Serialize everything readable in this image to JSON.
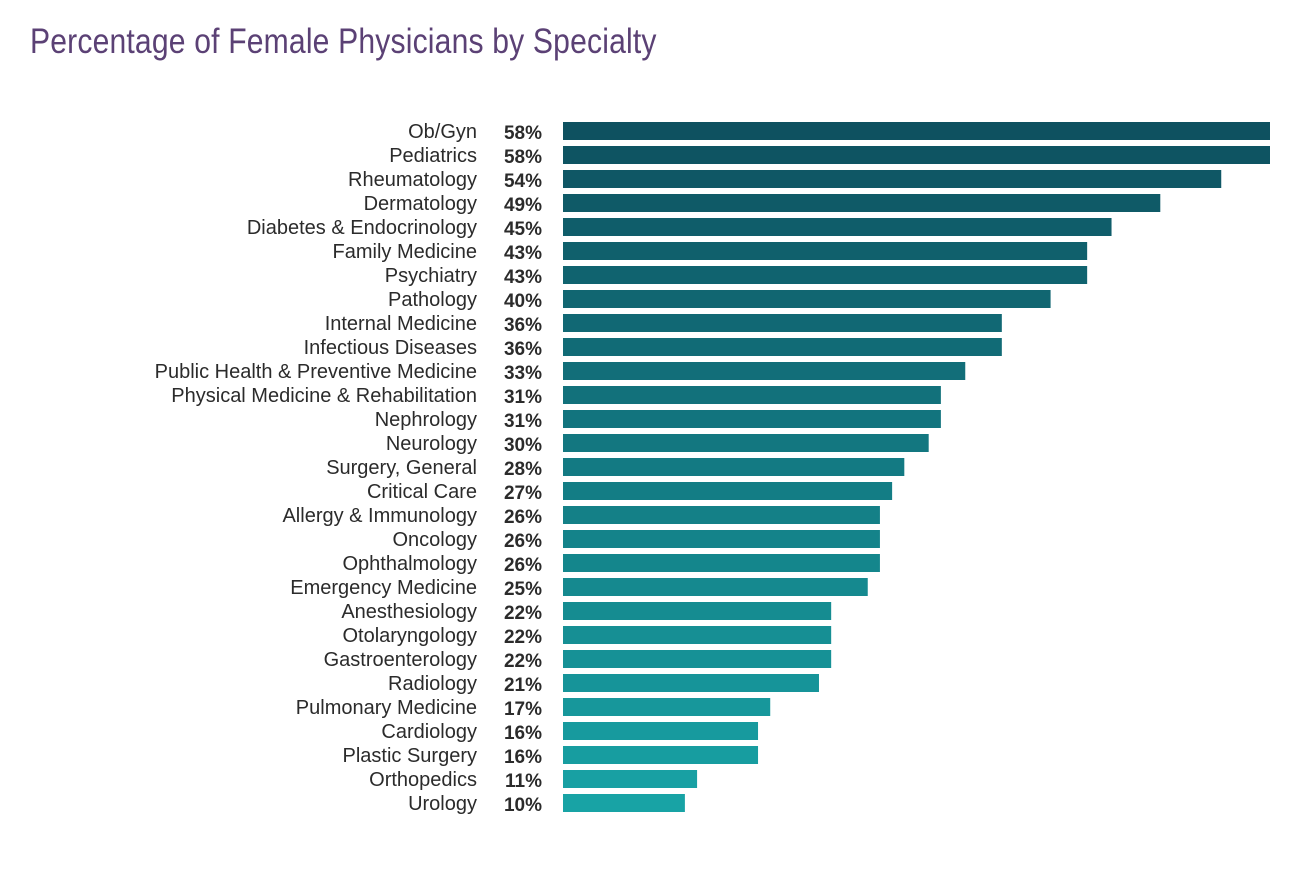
{
  "chart_data": {
    "type": "bar",
    "orientation": "horizontal",
    "title": "Percentage of Female Physicians by Specialty",
    "categories": [
      "Ob/Gyn",
      "Pediatrics",
      "Rheumatology",
      "Dermatology",
      "Diabetes & Endocrinology",
      "Family Medicine",
      "Psychiatry",
      "Pathology",
      "Internal Medicine",
      "Infectious Diseases",
      "Public Health & Preventive Medicine",
      "Physical Medicine & Rehabilitation",
      "Nephrology",
      "Neurology",
      "Surgery, General",
      "Critical Care",
      "Allergy & Immunology",
      "Oncology",
      "Ophthalmology",
      "Emergency Medicine",
      "Anesthesiology",
      "Otolaryngology",
      "Gastroenterology",
      "Radiology",
      "Pulmonary Medicine",
      "Cardiology",
      "Plastic Surgery",
      "Orthopedics",
      "Urology"
    ],
    "values": [
      58,
      58,
      54,
      49,
      45,
      43,
      43,
      40,
      36,
      36,
      33,
      31,
      31,
      30,
      28,
      27,
      26,
      26,
      26,
      25,
      22,
      22,
      22,
      21,
      17,
      16,
      16,
      11,
      10
    ],
    "value_labels": [
      "58%",
      "58%",
      "54%",
      "49%",
      "45%",
      "43%",
      "43%",
      "40%",
      "36%",
      "36%",
      "33%",
      "31%",
      "31%",
      "30%",
      "28%",
      "27%",
      "26%",
      "26%",
      "26%",
      "25%",
      "22%",
      "22%",
      "22%",
      "21%",
      "17%",
      "16%",
      "16%",
      "11%",
      "10%"
    ],
    "xlim": [
      0,
      58
    ],
    "grid": false,
    "colors": {
      "title": "#5b4175",
      "bar_start": "#0e5160",
      "bar_end": "#18a3a5"
    }
  }
}
